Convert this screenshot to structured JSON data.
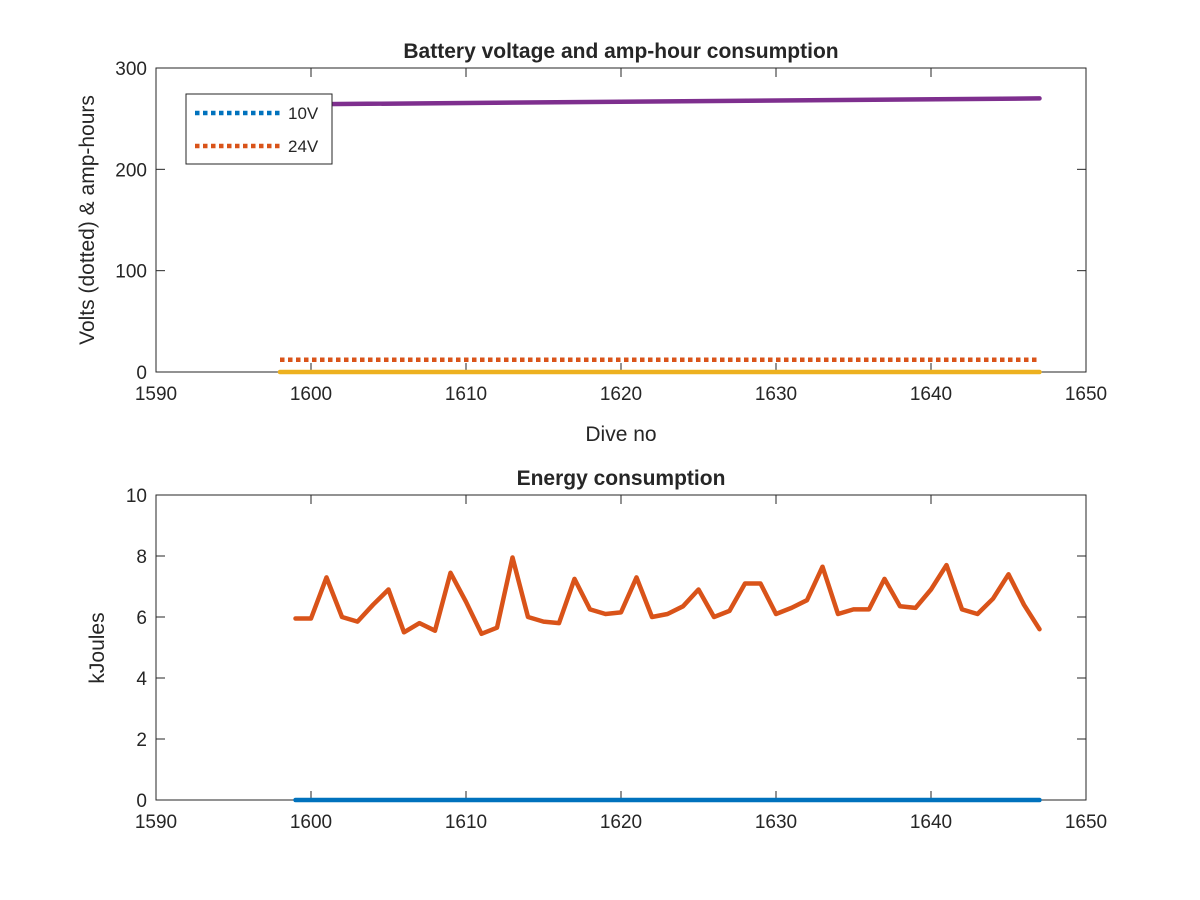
{
  "chart_data": [
    {
      "type": "line",
      "title": "Battery voltage and amp-hour consumption",
      "xlabel": "Dive no",
      "ylabel": "Volts (dotted) & amp-hours",
      "xlim": [
        1590,
        1650
      ],
      "ylim": [
        0,
        300
      ],
      "xticks": [
        1590,
        1600,
        1610,
        1620,
        1630,
        1640,
        1650
      ],
      "yticks": [
        0,
        100,
        200,
        300
      ],
      "grid": false,
      "legend_position": "top-left",
      "series": [
        {
          "name": "10V",
          "style": "dotted",
          "color": "#0072BD",
          "x": [
            1598,
            1647
          ],
          "y": [
            12,
            12
          ]
        },
        {
          "name": "24V",
          "style": "dotted",
          "color": "#D95319",
          "x": [
            1598,
            1647
          ],
          "y": [
            12,
            12
          ]
        },
        {
          "style": "solid",
          "color": "#EDB120",
          "x": [
            1598,
            1647
          ],
          "y": [
            0,
            0
          ]
        },
        {
          "style": "solid",
          "color": "#7E2F8E",
          "x": [
            1598,
            1647
          ],
          "y": [
            264,
            270
          ]
        }
      ]
    },
    {
      "type": "line",
      "title": "Energy consumption",
      "xlabel": "",
      "ylabel": "kJoules",
      "xlim": [
        1590,
        1650
      ],
      "ylim": [
        0,
        10
      ],
      "xticks": [
        1590,
        1600,
        1610,
        1620,
        1630,
        1640,
        1650
      ],
      "yticks": [
        0,
        2,
        4,
        6,
        8,
        10
      ],
      "grid": false,
      "series": [
        {
          "style": "solid",
          "color": "#0072BD",
          "x": [
            1599,
            1647
          ],
          "y": [
            0,
            0
          ]
        },
        {
          "style": "solid",
          "color": "#D95319",
          "x": [
            1599,
            1600,
            1601,
            1602,
            1603,
            1604,
            1605,
            1606,
            1607,
            1608,
            1609,
            1610,
            1611,
            1612,
            1613,
            1614,
            1615,
            1616,
            1617,
            1618,
            1619,
            1620,
            1621,
            1622,
            1623,
            1624,
            1625,
            1626,
            1627,
            1628,
            1629,
            1630,
            1631,
            1632,
            1633,
            1634,
            1635,
            1636,
            1637,
            1638,
            1639,
            1640,
            1641,
            1642,
            1643,
            1644,
            1645,
            1646,
            1647
          ],
          "y": [
            5.95,
            5.95,
            7.3,
            6.0,
            5.85,
            6.4,
            6.9,
            5.5,
            5.8,
            5.55,
            7.45,
            6.5,
            5.45,
            5.65,
            7.95,
            6.0,
            5.85,
            5.8,
            7.25,
            6.25,
            6.1,
            6.15,
            7.3,
            6.0,
            6.1,
            6.35,
            6.9,
            6.0,
            6.2,
            7.1,
            7.1,
            6.1,
            6.3,
            6.55,
            7.65,
            6.1,
            6.25,
            6.25,
            7.25,
            6.35,
            6.3,
            6.9,
            7.7,
            6.25,
            6.1,
            6.6,
            7.4,
            6.4,
            5.6
          ]
        }
      ]
    }
  ]
}
